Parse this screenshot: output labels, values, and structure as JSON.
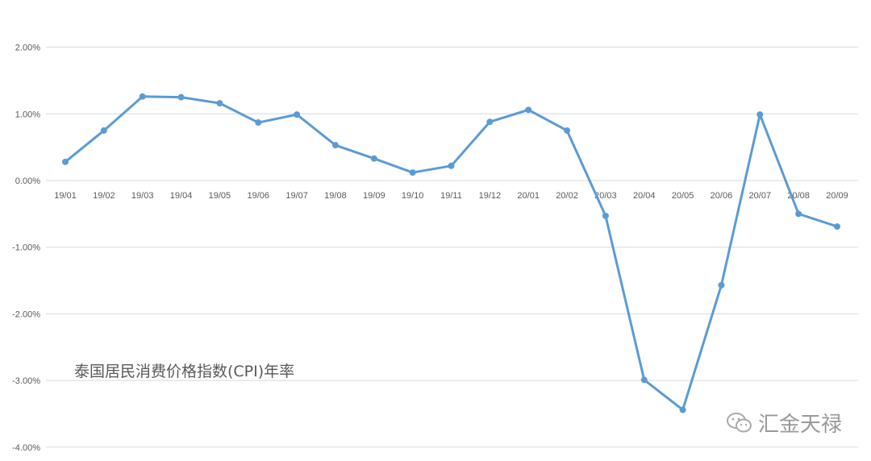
{
  "chart_data": {
    "type": "line",
    "title": "泰国居民消费价格指数(CPI)年率",
    "categories": [
      "19/01",
      "19/02",
      "19/03",
      "19/04",
      "19/05",
      "19/06",
      "19/07",
      "19/08",
      "19/09",
      "19/10",
      "19/11",
      "19/12",
      "20/01",
      "20/02",
      "20/03",
      "20/04",
      "20/05",
      "20/06",
      "20/07",
      "20/08",
      "20/09"
    ],
    "series": [
      {
        "values": [
          0.28,
          0.75,
          1.26,
          1.25,
          1.16,
          0.87,
          0.99,
          0.53,
          0.33,
          0.12,
          0.22,
          0.88,
          1.06,
          0.75,
          -0.53,
          -2.99,
          -3.44,
          -1.57,
          0.99,
          -0.5,
          -0.69
        ]
      }
    ],
    "yticks": [
      "2.00%",
      "1.00%",
      "0.00%",
      "-1.00%",
      "-2.00%",
      "-3.00%",
      "-4.00%"
    ],
    "ylim": [
      -4,
      2
    ],
    "grid": true,
    "line_color": "#5b9bd5"
  },
  "watermark": "汇金天禄"
}
